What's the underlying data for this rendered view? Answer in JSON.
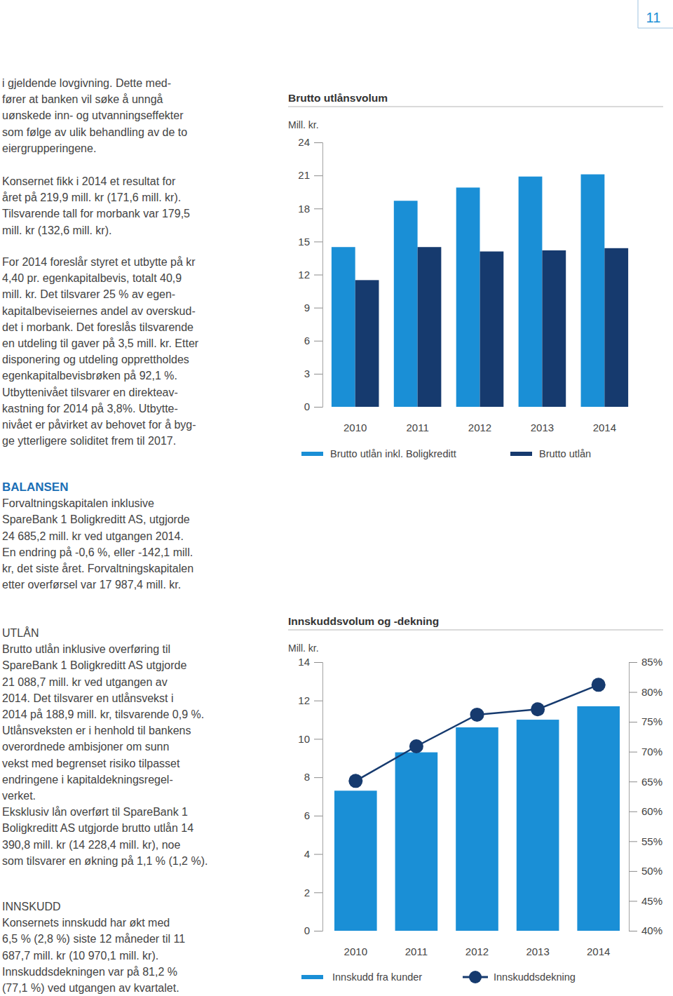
{
  "page": {
    "page_number": "11",
    "intro": [
      [
        "i gjeldende lovgivning. Dette med-",
        "fører at banken vil søke å unngå",
        "uønskede inn- og utvanningseffekter",
        "som følge av ulik behandling av de to",
        "eiergrupperingene."
      ],
      [
        "Konsernet fikk i 2014 et resultat for",
        "året på 219,9 mill. kr (171,6 mill. kr).",
        "Tilsvarende tall for morbank var 179,5",
        "mill. kr (132,6 mill. kr)."
      ],
      [
        "For 2014 foreslår styret et utbytte på kr",
        "4,40 pr. egenkapitalbevis, totalt 40,9",
        "mill. kr. Det tilsvarer 25 % av egen-",
        "kapitalbeviseiernes andel av overskud-",
        "det i morbank. Det foreslås tilsvarende",
        "en utdeling til gaver på 3,5 mill. kr. Etter",
        "disponering og utdeling opprettholdes",
        "egenkapitalbevisbrøken på 92,1 %.",
        "Utbyttenivået tilsvarer en direkteav-",
        "kastning for 2014 på 3,8%. Utbytte-",
        "nivået er påvirket av behovet for å byg-",
        "ge ytterligere soliditet frem til 2017."
      ]
    ],
    "sections": [
      {
        "heading": "BALANSEN",
        "lines": [
          "Forvaltningskapitalen inklusive",
          "SpareBank 1 Boligkreditt AS, utgjorde",
          "24 685,2 mill. kr ved utgangen 2014.",
          "En endring på -0,6 %, eller -142,1 mill.",
          "kr, det siste året. Forvaltningskapitalen",
          "etter overførsel var 17 987,4 mill. kr."
        ]
      },
      {
        "heading": "UTLÅN",
        "lines": [
          "Brutto utlån inklusive overføring til",
          "SpareBank 1 Boligkreditt AS utgjorde",
          "21 088,7 mill. kr ved utgangen av",
          "2014. Det tilsvarer en utlånsvekst i",
          "2014 på 188,9 mill. kr, tilsvarende 0,9 %.",
          "Utlånsveksten er i henhold til bankens",
          "overordnede ambisjoner om sunn",
          "vekst med begrenset risiko tilpasset",
          "endringene i kapitaldekningsregel-",
          "verket.",
          "Eksklusiv lån overført til SpareBank 1",
          "Boligkreditt AS utgjorde brutto utlån 14",
          "390,8 mill. kr (14 228,4 mill. kr), noe",
          "som tilsvarer en økning på 1,1 % (1,2 %)."
        ]
      },
      {
        "heading": "INNSKUDD",
        "lines": [
          "Konsernets innskudd har økt med",
          "6,5 % (2,8 %) siste 12 måneder til 11",
          "687,7 mill. kr (10 970,1 mill. kr).",
          "Innskuddsdekningen var på 81,2 %",
          "(77,1 %) ved utgangen av kvartalet."
        ]
      }
    ]
  },
  "chart_data": [
    {
      "type": "bar",
      "title": "Brutto utlånsvolum",
      "ylabel": "Mill. kr.",
      "categories": [
        "2010",
        "2011",
        "2012",
        "2013",
        "2014"
      ],
      "series": [
        {
          "name": "Brutto utlån inkl. Boligkreditt",
          "color": "#1a8fd6",
          "values": [
            14.5,
            18.7,
            19.9,
            20.9,
            21.1
          ]
        },
        {
          "name": "Brutto utlån",
          "color": "#163a6e",
          "values": [
            11.5,
            14.5,
            14.1,
            14.2,
            14.4
          ]
        }
      ],
      "ylim": [
        0,
        24
      ],
      "yticks": [
        0,
        3,
        6,
        9,
        12,
        15,
        18,
        21,
        24
      ],
      "legend": "bottom"
    },
    {
      "type": "bar",
      "title": "Innskuddsvolum og -dekning",
      "ylabel": "Mill. kr.",
      "categories": [
        "2010",
        "2011",
        "2012",
        "2013",
        "2014"
      ],
      "series": [
        {
          "name": "Innskudd fra kunder",
          "type": "bar",
          "color": "#1a8fd6",
          "values": [
            7.3,
            9.3,
            10.6,
            11.0,
            11.7
          ]
        },
        {
          "name": "Innskuddsdekning",
          "type": "line",
          "axis": "y2",
          "color": "#163a6e",
          "marker": "circle",
          "values": [
            65.1,
            70.9,
            76.2,
            77.1,
            81.2
          ]
        }
      ],
      "ylim": [
        0,
        14
      ],
      "yticks": [
        0,
        2,
        4,
        6,
        8,
        10,
        12,
        14
      ],
      "y2lim": [
        40,
        85
      ],
      "y2ticks": [
        {
          "value": 40,
          "label": "40%"
        },
        {
          "value": 45,
          "label": "45%"
        },
        {
          "value": 50,
          "label": "50%"
        },
        {
          "value": 55,
          "label": "55%"
        },
        {
          "value": 60,
          "label": "60%"
        },
        {
          "value": 65,
          "label": "65%"
        },
        {
          "value": 70,
          "label": "70%"
        },
        {
          "value": 75,
          "label": "75%"
        },
        {
          "value": 80,
          "label": "80%"
        },
        {
          "value": 85,
          "label": "85%"
        }
      ],
      "legend": "bottom"
    }
  ]
}
